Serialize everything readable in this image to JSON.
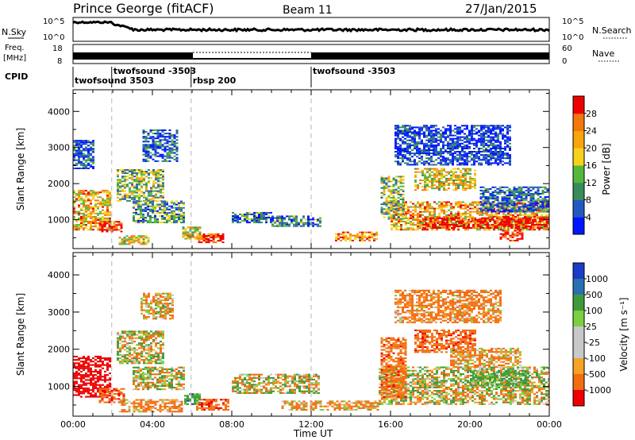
{
  "header": {
    "station": "Prince George (fitACF)",
    "beam": "Beam 11",
    "date": "27/Jan/2015"
  },
  "strips": {
    "nsky_label": "N.Sky",
    "nsky_ticks": [
      "10^5",
      "10^0"
    ],
    "nsearch_label": "N.Search",
    "freq_label_1": "Freq.",
    "freq_label_2": "[MHz]",
    "freq_ticks": [
      "18",
      "8"
    ],
    "nave_label": "Nave",
    "nave_ticks": [
      "60",
      "0"
    ],
    "cpid_label": "CPID"
  },
  "cpid_segments": [
    {
      "label": "twofsound 3503",
      "start_hour": 0.0,
      "row": 1
    },
    {
      "label": "twofsound -3503",
      "start_hour": 1.95,
      "row": 0
    },
    {
      "label": "rbsp 200",
      "start_hour": 5.95,
      "row": 1
    },
    {
      "label": "twofsound -3503",
      "start_hour": 12.0,
      "row": 0
    }
  ],
  "chart_data": [
    {
      "type": "heatmap",
      "panel": "power",
      "ylabel": "Slant Range [km]",
      "ylim": [
        200,
        4600
      ],
      "yticks": [
        "1000",
        "2000",
        "3000",
        "4000"
      ],
      "xlim": [
        0,
        24
      ],
      "colorbar_label": "Power [dB]",
      "colorbar_ticks": [
        "4",
        "8",
        "12",
        "16",
        "20",
        "24",
        "28"
      ],
      "colorbar_colors": [
        "#0016ff",
        "#2159c0",
        "#3a8b5a",
        "#55b83a",
        "#f6d21e",
        "#f7a40e",
        "#f4770c",
        "#ef0000"
      ],
      "regions": [
        {
          "x0": 0.0,
          "x1": 1.9,
          "y0": 700,
          "y1": 1800,
          "level": 0.65
        },
        {
          "x0": 1.3,
          "x1": 2.4,
          "y0": 650,
          "y1": 950,
          "level": 0.95
        },
        {
          "x0": 2.2,
          "x1": 4.6,
          "y0": 1500,
          "y1": 2400,
          "level": 0.45
        },
        {
          "x0": 2.3,
          "x1": 3.8,
          "y0": 300,
          "y1": 550,
          "level": 0.6
        },
        {
          "x0": 3.0,
          "x1": 5.6,
          "y0": 900,
          "y1": 1500,
          "level": 0.35
        },
        {
          "x0": 6.3,
          "x1": 7.6,
          "y0": 350,
          "y1": 600,
          "level": 0.95
        },
        {
          "x0": 5.5,
          "x1": 6.4,
          "y0": 450,
          "y1": 800,
          "level": 0.55
        },
        {
          "x0": 8.0,
          "x1": 10.0,
          "y0": 900,
          "y1": 1200,
          "level": 0.25
        },
        {
          "x0": 10.0,
          "x1": 12.5,
          "y0": 800,
          "y1": 1100,
          "level": 0.3
        },
        {
          "x0": 13.2,
          "x1": 15.3,
          "y0": 400,
          "y1": 650,
          "level": 0.75
        },
        {
          "x0": 16.0,
          "x1": 24.0,
          "y0": 700,
          "y1": 1500,
          "level": 0.7
        },
        {
          "x0": 17.6,
          "x1": 24.0,
          "y0": 750,
          "y1": 1050,
          "level": 1.0
        },
        {
          "x0": 17.2,
          "x1": 20.3,
          "y0": 1800,
          "y1": 2400,
          "level": 0.6
        },
        {
          "x0": 15.5,
          "x1": 16.6,
          "y0": 1000,
          "y1": 2200,
          "level": 0.45
        },
        {
          "x0": 20.5,
          "x1": 24.0,
          "y0": 1200,
          "y1": 1900,
          "level": 0.2
        },
        {
          "x0": 21.5,
          "x1": 22.6,
          "y0": 400,
          "y1": 700,
          "level": 1.0
        },
        {
          "x0": 0.0,
          "x1": 1.0,
          "y0": 2400,
          "y1": 3200,
          "level": 0.15
        },
        {
          "x0": 3.5,
          "x1": 5.2,
          "y0": 2600,
          "y1": 3500,
          "level": 0.15
        },
        {
          "x0": 16.2,
          "x1": 22.0,
          "y0": 2500,
          "y1": 3600,
          "level": 0.1
        }
      ]
    },
    {
      "type": "heatmap",
      "panel": "velocity",
      "ylabel": "Slant Range [km]",
      "ylim": [
        200,
        4600
      ],
      "yticks": [
        "1000",
        "2000",
        "3000",
        "4000"
      ],
      "xlim": [
        0,
        24
      ],
      "xlabel": "Time UT",
      "xticks": [
        "00:00",
        "04:00",
        "08:00",
        "12:00",
        "16:00",
        "20:00",
        "00:00"
      ],
      "colorbar_label": "Velocity [m s⁻¹]",
      "colorbar_ticks": [
        "1000",
        "500",
        "100",
        "25",
        "-25",
        "-100",
        "-500",
        "-1000"
      ],
      "colorbar_colors": [
        "#1a3cc8",
        "#2a6fb0",
        "#3f9a3a",
        "#7ccf3e",
        "#c8c8c8",
        "#c8c8c8",
        "#f6a225",
        "#f36d12",
        "#ee0000"
      ],
      "regions": [
        {
          "x0": 0.0,
          "x1": 1.9,
          "y0": 700,
          "y1": 1800,
          "vel": -800
        },
        {
          "x0": 1.3,
          "x1": 2.6,
          "y0": 550,
          "y1": 950,
          "vel": -400
        },
        {
          "x0": 2.2,
          "x1": 4.6,
          "y0": 1600,
          "y1": 2500,
          "vel": 0
        },
        {
          "x0": 2.3,
          "x1": 5.5,
          "y0": 300,
          "y1": 650,
          "vel": -200
        },
        {
          "x0": 3.0,
          "x1": 5.6,
          "y0": 900,
          "y1": 1500,
          "vel": 0
        },
        {
          "x0": 6.2,
          "x1": 7.8,
          "y0": 350,
          "y1": 650,
          "vel": -400
        },
        {
          "x0": 5.6,
          "x1": 6.4,
          "y0": 500,
          "y1": 800,
          "vel": 300
        },
        {
          "x0": 8.0,
          "x1": 12.4,
          "y0": 800,
          "y1": 1300,
          "vel": 0
        },
        {
          "x0": 10.5,
          "x1": 15.3,
          "y0": 350,
          "y1": 600,
          "vel": -150
        },
        {
          "x0": 15.4,
          "x1": 24.0,
          "y0": 500,
          "y1": 1500,
          "vel": 0
        },
        {
          "x0": 15.5,
          "x1": 16.8,
          "y0": 700,
          "y1": 2300,
          "vel": -300
        },
        {
          "x0": 17.2,
          "x1": 20.3,
          "y0": 1900,
          "y1": 2500,
          "vel": -350
        },
        {
          "x0": 19.0,
          "x1": 22.5,
          "y0": 1500,
          "y1": 2000,
          "vel": -150
        },
        {
          "x0": 20.0,
          "x1": 23.0,
          "y0": 1000,
          "y1": 1400,
          "vel": 200
        },
        {
          "x0": 3.4,
          "x1": 5.0,
          "y0": 2800,
          "y1": 3500,
          "vel": -100
        },
        {
          "x0": 16.2,
          "x1": 21.5,
          "y0": 2700,
          "y1": 3600,
          "vel": -200
        }
      ]
    }
  ]
}
